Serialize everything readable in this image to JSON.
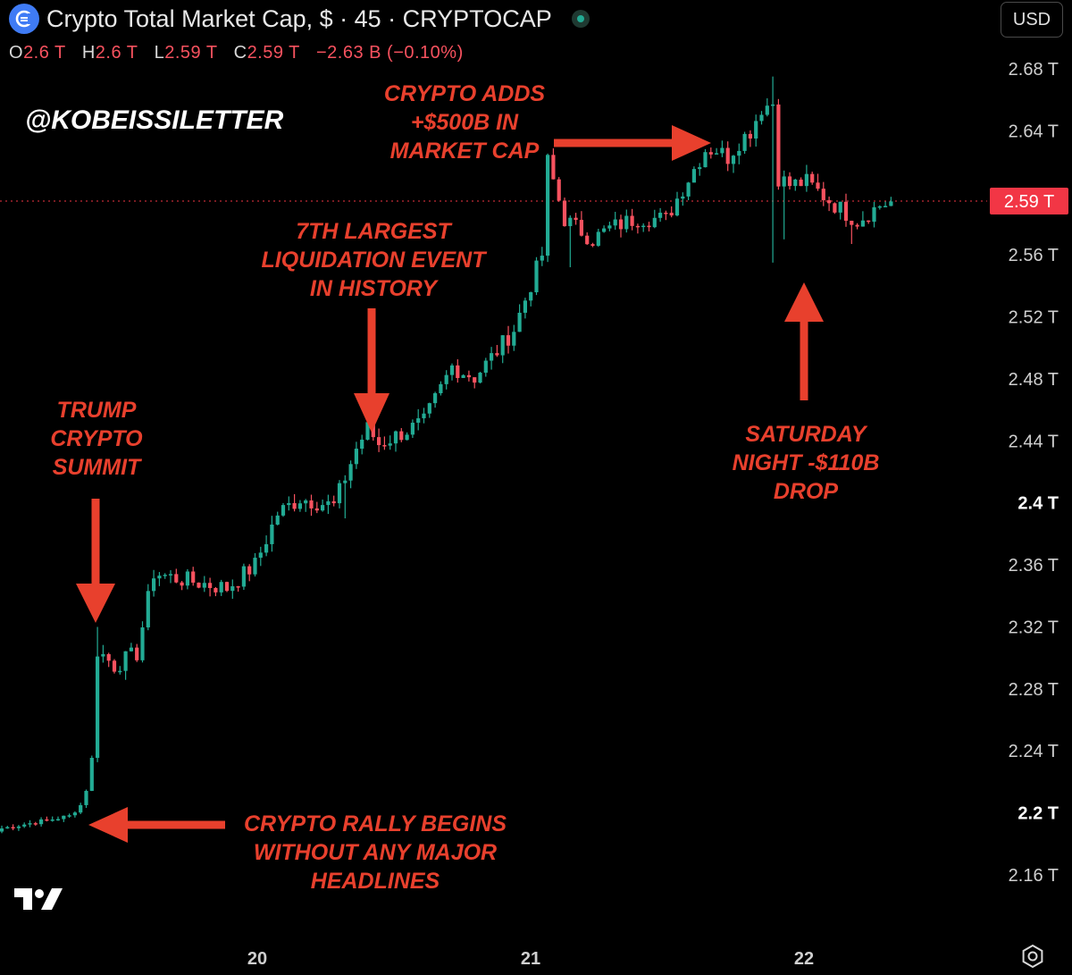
{
  "header": {
    "title": "Crypto Total Market Cap, $ · 45 · CRYPTOCAP",
    "currency": "USD"
  },
  "ohlc": {
    "o_label": "O",
    "o_value": "2.6 T",
    "h_label": "H",
    "h_value": "2.6 T",
    "l_label": "L",
    "l_value": "2.59 T",
    "c_label": "C",
    "c_value": "2.59 T",
    "change": "−2.63 B (−0.10%)"
  },
  "watermark": "@KOBEISSILETTER",
  "annotations": {
    "crypto_adds": [
      "CRYPTO ADDS",
      "+$500B IN",
      "MARKET CAP"
    ],
    "liquidation": [
      "7TH LARGEST",
      "LIQUIDATION EVENT",
      "IN HISTORY"
    ],
    "trump": [
      "TRUMP",
      "CRYPTO",
      "SUMMIT"
    ],
    "saturday": [
      "SATURDAY",
      "NIGHT -$110B",
      "DROP"
    ],
    "rally": [
      "CRYPTO RALLY BEGINS",
      "WITHOUT ANY MAJOR",
      "HEADLINES"
    ]
  },
  "colors": {
    "background": "#000000",
    "up": "#22ab94",
    "down": "#f7525f",
    "annotation": "#e8402d",
    "price_label": "#f23645"
  },
  "chart_data": {
    "type": "candlestick",
    "title": "Crypto Total Market Cap, $ · 45 · CRYPTOCAP",
    "ylabel": "",
    "y_unit": "T",
    "ylim": [
      2.13,
      2.7
    ],
    "y_ticks": [
      "2.68 T",
      "2.64 T",
      "2.56 T",
      "2.52 T",
      "2.48 T",
      "2.44 T",
      "2.4 T",
      "2.36 T",
      "2.32 T",
      "2.28 T",
      "2.24 T",
      "2.2 T",
      "2.16 T"
    ],
    "y_tick_values": [
      2.68,
      2.64,
      2.56,
      2.52,
      2.48,
      2.44,
      2.4,
      2.36,
      2.32,
      2.28,
      2.24,
      2.2,
      2.16
    ],
    "x_ticks": [
      "20",
      "21",
      "22"
    ],
    "current_price": 2.59,
    "current_price_label": "2.59 T",
    "grid": false,
    "waypoints": [
      [
        0,
        2.19
      ],
      [
        12,
        2.198
      ],
      [
        14,
        2.205
      ],
      [
        15,
        2.215
      ],
      [
        16,
        2.235
      ],
      [
        17,
        2.305
      ],
      [
        20,
        2.295
      ],
      [
        24,
        2.303
      ],
      [
        27,
        2.355
      ],
      [
        30,
        2.352
      ],
      [
        40,
        2.345
      ],
      [
        45,
        2.36
      ],
      [
        49,
        2.393
      ],
      [
        53,
        2.403
      ],
      [
        59,
        2.398
      ],
      [
        63,
        2.435
      ],
      [
        65,
        2.448
      ],
      [
        67,
        2.438
      ],
      [
        75,
        2.452
      ],
      [
        80,
        2.488
      ],
      [
        84,
        2.481
      ],
      [
        88,
        2.498
      ],
      [
        91,
        2.512
      ],
      [
        96,
        2.56
      ],
      [
        97,
        2.62
      ],
      [
        100,
        2.583
      ],
      [
        105,
        2.57
      ],
      [
        108,
        2.577
      ],
      [
        113,
        2.584
      ],
      [
        118,
        2.583
      ],
      [
        121,
        2.603
      ],
      [
        125,
        2.628
      ],
      [
        127,
        2.628
      ],
      [
        129,
        2.623
      ],
      [
        131,
        2.633
      ],
      [
        133,
        2.64
      ],
      [
        135,
        2.655
      ],
      [
        137,
        2.658
      ],
      [
        138,
        2.61
      ],
      [
        140,
        2.605
      ],
      [
        143,
        2.607
      ],
      [
        147,
        2.595
      ],
      [
        150,
        2.587
      ],
      [
        152,
        2.582
      ],
      [
        156,
        2.592
      ],
      [
        158,
        2.594
      ]
    ],
    "spikes": {
      "17": {
        "high": 2.32
      },
      "38": {
        "low": 2.34
      },
      "61": {
        "low": 2.39
      },
      "101": {
        "low": 2.552
      },
      "137": {
        "high": 2.675,
        "low": 2.555
      },
      "139": {
        "low": 2.57
      },
      "151": {
        "low": 2.567
      }
    },
    "seed": 7
  }
}
